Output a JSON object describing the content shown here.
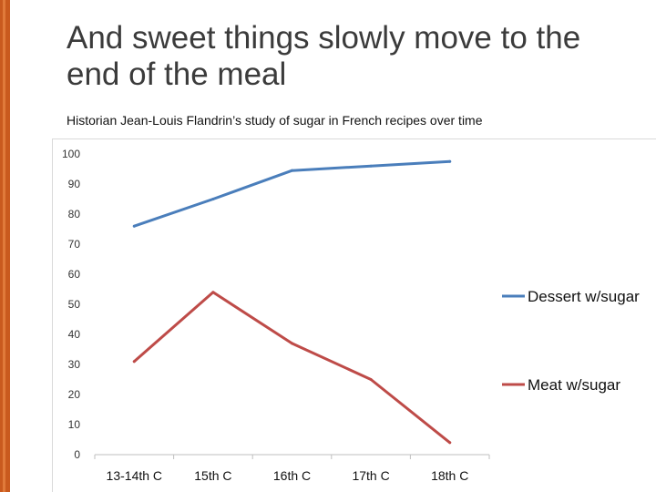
{
  "slide": {
    "title": "And sweet things slowly move to the end of the meal",
    "subtitle": "Historian Jean-Louis Flandrin’s study of sugar in French recipes over time"
  },
  "colors": {
    "accent": "#c95a1e",
    "dessert": "#4a7ebb",
    "meat": "#be4b48"
  },
  "chart_data": {
    "type": "line",
    "title": "",
    "xlabel": "",
    "ylabel": "",
    "categories": [
      "13-14th C",
      "15th C",
      "16th C",
      "17th C",
      "18th C"
    ],
    "ylim": [
      0,
      100
    ],
    "yticks": [
      "0",
      "10",
      "20",
      "30",
      "40",
      "50",
      "60",
      "70",
      "80",
      "90",
      "100"
    ],
    "grid": false,
    "legend_position": "right",
    "series": [
      {
        "name": "Dessert w/sugar",
        "values": [
          76,
          85,
          94.5,
          96,
          97.5
        ],
        "color": "#4a7ebb"
      },
      {
        "name": "Meat w/sugar",
        "values": [
          31,
          54,
          37,
          25,
          4
        ],
        "color": "#be4b48"
      }
    ]
  }
}
